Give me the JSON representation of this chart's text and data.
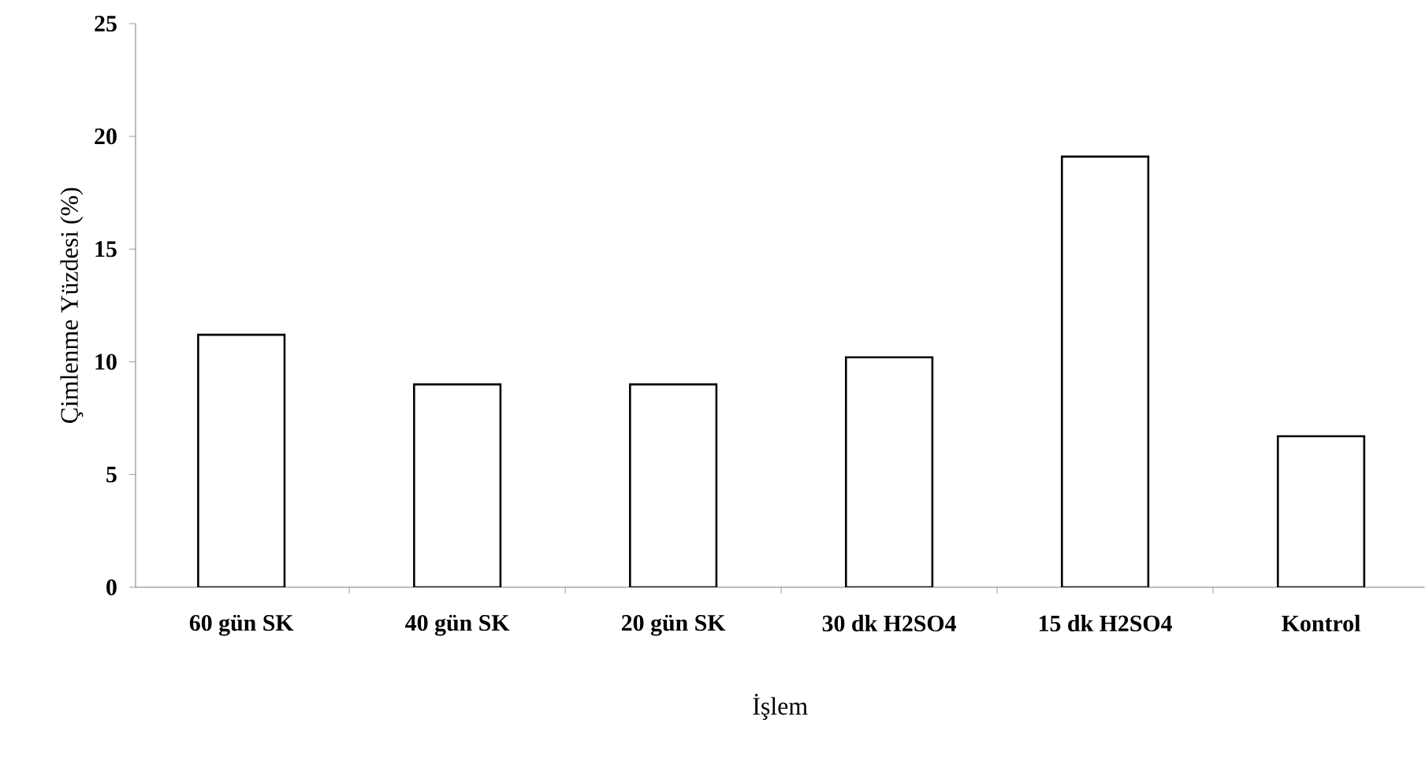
{
  "chart_data": {
    "type": "bar",
    "xlabel": "İşlem",
    "ylabel": "Çimlenme Yüzdesi (%)",
    "categories": [
      "60 gün SK",
      "40 gün SK",
      "20 gün SK",
      "30 dk H2SO4",
      "15 dk H2SO4",
      "Kontrol"
    ],
    "values": [
      11.2,
      9.0,
      9.0,
      10.2,
      19.1,
      6.7
    ],
    "color": "#ffffff",
    "ylim": [
      0,
      25
    ],
    "yticks": [
      0,
      5,
      10,
      15,
      20,
      25
    ],
    "grid": false
  }
}
